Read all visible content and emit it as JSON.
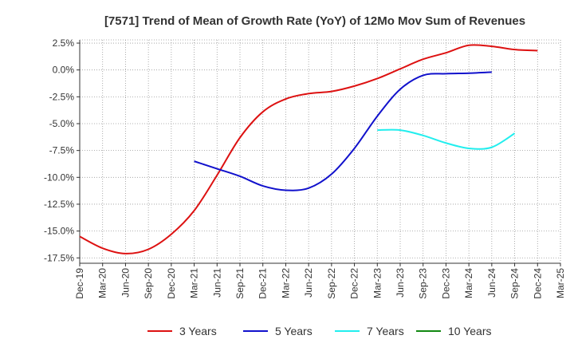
{
  "chart_data": {
    "type": "line",
    "title": "[7571]  Trend of Mean of Growth Rate (YoY) of 12Mo Mov Sum of Revenues",
    "xlabel": "",
    "ylabel": "",
    "grid": true,
    "legend_position": "bottom",
    "ylim": [
      -18,
      2.8
    ],
    "y_ticks": [
      2.5,
      0,
      -2.5,
      -5,
      -7.5,
      -10,
      -12.5,
      -15,
      -17.5
    ],
    "y_tick_labels": [
      "2.5%",
      "0.0%",
      "-2.5%",
      "-5.0%",
      "-7.5%",
      "-10.0%",
      "-12.5%",
      "-15.0%",
      "-17.5%"
    ],
    "x_tick_labels": [
      "Dec-19",
      "Mar-20",
      "Jun-20",
      "Sep-20",
      "Dec-20",
      "Mar-21",
      "Jun-21",
      "Sep-21",
      "Dec-21",
      "Mar-22",
      "Jun-22",
      "Sep-22",
      "Dec-22",
      "Mar-23",
      "Jun-23",
      "Sep-23",
      "Dec-23",
      "Mar-24",
      "Jun-24",
      "Sep-24",
      "Dec-24",
      "Mar-25"
    ],
    "series": [
      {
        "name": "3 Years",
        "color": "#dd1111",
        "start_index": 0,
        "values": [
          -15.5,
          -16.6,
          -17.1,
          -16.7,
          -15.3,
          -13.1,
          -9.8,
          -6.3,
          -3.9,
          -2.7,
          -2.2,
          -2.0,
          -1.5,
          -0.8,
          0.1,
          1.0,
          1.6,
          2.3,
          2.2,
          1.9,
          1.8
        ]
      },
      {
        "name": "5 Years",
        "color": "#1111cc",
        "start_index": 5,
        "values": [
          -8.5,
          -9.2,
          -9.9,
          -10.8,
          -11.2,
          -11.0,
          -9.7,
          -7.3,
          -4.3,
          -1.8,
          -0.5,
          -0.35,
          -0.3,
          -0.2
        ]
      },
      {
        "name": "7 Years",
        "color": "#22eeee",
        "start_index": 13,
        "values": [
          -5.6,
          -5.6,
          -6.1,
          -6.8,
          -7.3,
          -7.2,
          -5.9
        ]
      },
      {
        "name": "10 Years",
        "color": "#118811",
        "start_index": 0,
        "values": []
      }
    ]
  }
}
